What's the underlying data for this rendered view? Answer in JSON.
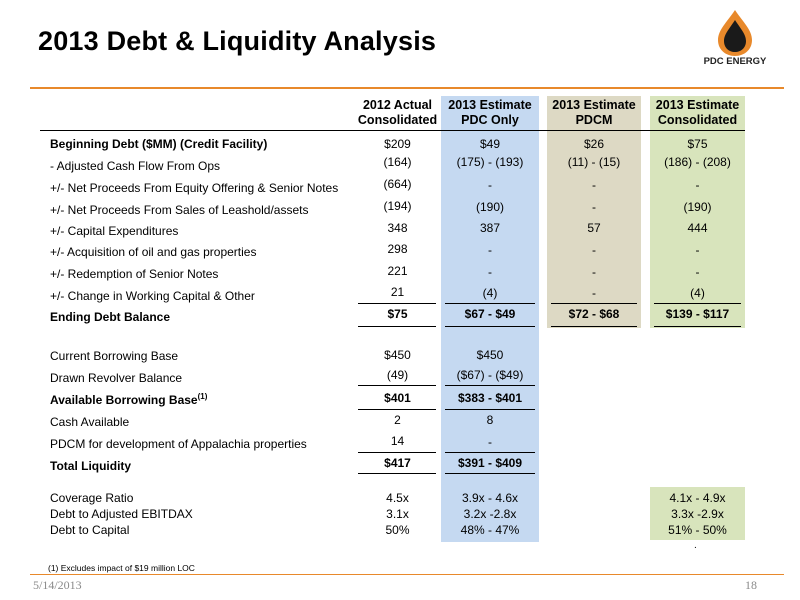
{
  "title": "2013 Debt & Liquidity Analysis",
  "logo": {
    "text": "PDC ENERGY",
    "accent_color": "#e8892b",
    "dark_color": "#1a1a1a"
  },
  "colors": {
    "pdc_only_col": "#c5d9f1",
    "pdcm_col": "#ddd9c4",
    "consolidated_col": "#d8e4bc",
    "rule": "#e8892b"
  },
  "columns": [
    {
      "line1": "2012 Actual",
      "line2": "Consolidated"
    },
    {
      "line1": "2013 Estimate",
      "line2": "PDC Only"
    },
    {
      "line1": "2013 Estimate",
      "line2": "PDCM"
    },
    {
      "line1": "2013 Estimate",
      "line2": "Consolidated"
    }
  ],
  "rows": [
    {
      "label": "Beginning Debt ($MM) (Credit Facility)",
      "c1": "$209",
      "c2": "$49",
      "c3": "$26",
      "c4": "$75"
    },
    {
      "label": "- Adjusted Cash Flow From Ops",
      "c1": "(164)",
      "c2": "(175) - (193)",
      "c3": "(11) - (15)",
      "c4": "(186) - (208)"
    },
    {
      "label": "+/- Net Proceeds From Equity Offering  & Senior Notes",
      "c1": "(664)",
      "c2": "-",
      "c3": "-",
      "c4": "-"
    },
    {
      "label": "+/- Net Proceeds From Sales of Leashold/assets",
      "c1": "(194)",
      "c2": "(190)",
      "c3": "-",
      "c4": "(190)"
    },
    {
      "label": "+/- Capital Expenditures",
      "c1": "348",
      "c2": "387",
      "c3": "57",
      "c4": "444"
    },
    {
      "label": "+/- Acquisition of oil and gas properties",
      "c1": "298",
      "c2": "-",
      "c3": "-",
      "c4": "-"
    },
    {
      "label": "+/- Redemption of Senior Notes",
      "c1": "221",
      "c2": "-",
      "c3": "-",
      "c4": "-"
    },
    {
      "label": "+/- Change in Working Capital & Other",
      "c1": "21",
      "c2": "(4)",
      "c3": "-",
      "c4": "(4)"
    },
    {
      "label": "Ending Debt Balance",
      "c1": "$75",
      "c2": "$67 - $49",
      "c3": "$72 - $68",
      "c4": "$139 - $117"
    }
  ],
  "liquidity": [
    {
      "label": "Current Borrowing Base",
      "c1": "$450",
      "c2": "$450"
    },
    {
      "label": "Drawn Revolver Balance",
      "c1": "(49)",
      "c2": "($67) - ($49)"
    },
    {
      "label": "Available Borrowing Base",
      "sup": "(1)",
      "c1": "$401",
      "c2": "$383 - $401"
    },
    {
      "label": "Cash Available",
      "c1": "2",
      "c2": "8"
    },
    {
      "label": "PDCM for development of Appalachia properties",
      "c1": "14",
      "c2": "-"
    },
    {
      "label": "Total Liquidity",
      "c1": "$417",
      "c2": "$391 - $409"
    }
  ],
  "ratios": [
    {
      "label": "Coverage Ratio",
      "c1": "4.5x",
      "c2": "3.9x - 4.6x",
      "c4": "4.1x - 4.9x"
    },
    {
      "label": "Debt to Adjusted EBITDAX",
      "c1": "3.1x",
      "c2": "3.2x -2.8x",
      "c4": "3.3x -2.9x"
    },
    {
      "label": "Debt to Capital",
      "c1": "50%",
      "c2": "48% - 47%",
      "c4": "51% - 50%"
    }
  ],
  "footnote": "(1) Excludes impact of $19 million LOC",
  "dot": ".",
  "date": "5/14/2013",
  "page_number": "18"
}
